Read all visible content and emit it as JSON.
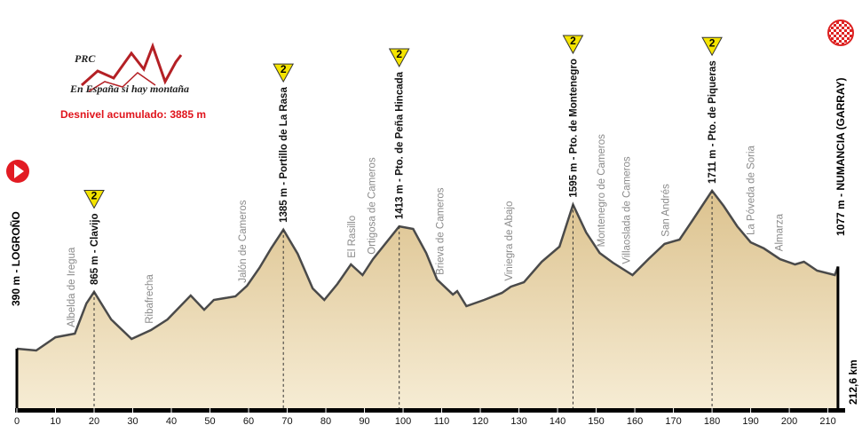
{
  "chart_data": {
    "type": "area",
    "logo": {
      "title": "PRC",
      "tagline": "En España si hay montaña"
    },
    "subtitle": "Desnivel acumulado: 3885 m",
    "start_label": "390 m - LOGROÑO",
    "end_label": "1077 m - NUMANCIA (GARRAY)",
    "distance_label": "212,6 km",
    "x": [
      0,
      5,
      10,
      15,
      18,
      20,
      24.4,
      29.7,
      34.7,
      39,
      45,
      48.5,
      51,
      56.6,
      59.6,
      62.8,
      65.8,
      69,
      72.7,
      76.6,
      79.6,
      83,
      86.5,
      89.5,
      92.2,
      99,
      102.6,
      106,
      108.8,
      112.9,
      114,
      116.4,
      121,
      125.6,
      127.9,
      131.3,
      135.9,
      140.5,
      144,
      147.4,
      150.9,
      154.3,
      159.4,
      163.5,
      167.7,
      171.6,
      175,
      180,
      183,
      186.5,
      190,
      193.4,
      197.6,
      201.5,
      203.8,
      207.2,
      211.8,
      212.6
    ],
    "values": [
      390,
      375,
      486,
      516,
      768,
      865,
      635,
      472,
      546,
      635,
      835,
      716,
      798,
      828,
      917,
      1065,
      1228,
      1385,
      1184,
      895,
      798,
      932,
      1095,
      1006,
      1139,
      1413,
      1392,
      1191,
      969,
      843,
      872,
      746,
      798,
      857,
      909,
      946,
      1117,
      1243,
      1595,
      1362,
      1191,
      1110,
      1006,
      1139,
      1266,
      1303,
      1466,
      1711,
      1585,
      1414,
      1280,
      1229,
      1139,
      1095,
      1117,
      1043,
      1006,
      1077
    ],
    "color": "#e9d6a9",
    "line_color": "#4a4a4a",
    "xlim": [
      0,
      214
    ],
    "ylim": [
      -107,
      3306
    ],
    "xticks": [
      0,
      10,
      20,
      30,
      40,
      50,
      60,
      70,
      80,
      90,
      100,
      110,
      120,
      130,
      140,
      150,
      160,
      170,
      180,
      190,
      200,
      210
    ],
    "climbs": [
      {
        "label": "865 m - Clavijo",
        "x": 20,
        "category": 2
      },
      {
        "label": "1385 m - Portillo de La Rasa",
        "x": 69,
        "category": 2
      },
      {
        "label": "1413 m - Pto. de Peña Hincada",
        "x": 99,
        "category": 2
      },
      {
        "label": "1595 m - Pto. de Montenegro",
        "x": 144,
        "category": 2
      },
      {
        "label": "1711 m - Pto. de Piqueras",
        "x": 180,
        "category": 2
      }
    ],
    "places": [
      {
        "label": "Albelda de Iregua",
        "x": 14
      },
      {
        "label": "Ribafrecha",
        "x": 34.3
      },
      {
        "label": "Jalón de Cameros",
        "x": 58.4
      },
      {
        "label": "El Rasillo",
        "x": 86.7
      },
      {
        "label": "Ortigosa de Cameros",
        "x": 91.8
      },
      {
        "label": "Brieva de Cameros",
        "x": 109.5
      },
      {
        "label": "Viniegra de Abajo",
        "x": 127.4
      },
      {
        "label": "Montenegro de Cameros",
        "x": 151.3
      },
      {
        "label": "Villaoslada de Cameros",
        "x": 157.8
      },
      {
        "label": "San Andrés",
        "x": 167.9
      },
      {
        "label": "La Póveda de Soria",
        "x": 190
      },
      {
        "label": "Almarza",
        "x": 197.3
      }
    ]
  }
}
